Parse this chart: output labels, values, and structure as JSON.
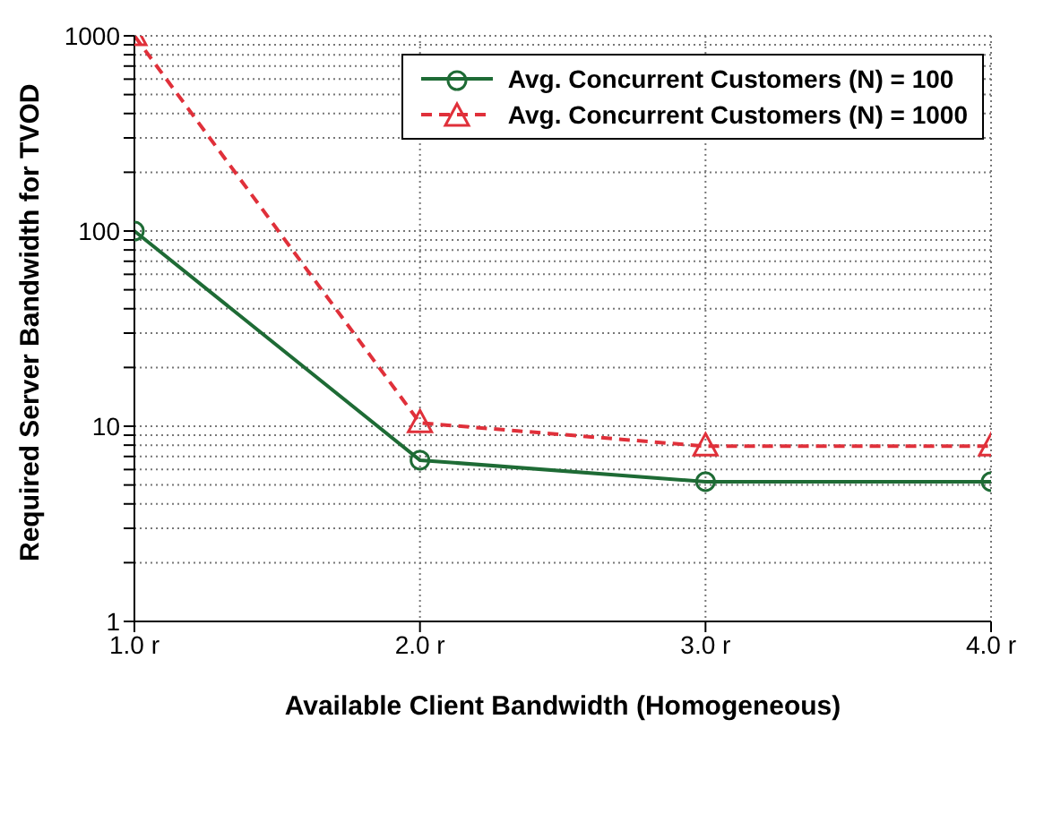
{
  "chart_data": {
    "type": "line",
    "xlabel": "Available Client Bandwidth (Homogeneous)",
    "ylabel": "Required Server Bandwidth for TVOD",
    "x": [
      1,
      2,
      3,
      4
    ],
    "series": [
      {
        "name": "Avg. Concurrent Customers (N) = 100",
        "color": "#1e6b35",
        "values": [
          100,
          6.7,
          5.2,
          5.2
        ],
        "marker": "circle",
        "line_style": "solid"
      },
      {
        "name": "Avg. Concurrent Customers (N) = 1000",
        "color": "#e0303a",
        "values": [
          1000,
          10.4,
          7.9,
          7.9
        ],
        "marker": "triangle",
        "line_style": "dashed"
      }
    ],
    "log": "y",
    "xlim": [
      1,
      4
    ],
    "ylim": [
      1,
      1000
    ],
    "xticks": [
      {
        "value": 1,
        "label": "1.0 r"
      },
      {
        "value": 2,
        "label": "2.0 r"
      },
      {
        "value": 3,
        "label": "3.0 r"
      },
      {
        "value": 4,
        "label": "4.0 r"
      }
    ],
    "yticks": [
      1,
      {
        "value": 2,
        "label": null
      },
      {
        "value": 3,
        "label": null
      },
      {
        "value": 4,
        "label": null
      },
      {
        "value": 5,
        "label": null
      },
      {
        "value": 6,
        "label": null
      },
      {
        "value": 7,
        "label": null
      },
      {
        "value": 8,
        "label": null
      },
      {
        "value": 9,
        "label": null
      },
      10,
      {
        "value": 20,
        "label": null
      },
      {
        "value": 30,
        "label": null
      },
      {
        "value": 40,
        "label": null
      },
      {
        "value": 50,
        "label": null
      },
      {
        "value": 60,
        "label": null
      },
      {
        "value": 70,
        "label": null
      },
      {
        "value": 80,
        "label": null
      },
      {
        "value": 90,
        "label": null
      },
      100,
      {
        "value": 200,
        "label": null
      },
      {
        "value": 300,
        "label": null
      },
      {
        "value": 400,
        "label": null
      },
      {
        "value": 500,
        "label": null
      },
      {
        "value": 600,
        "label": null
      },
      {
        "value": 700,
        "label": null
      },
      {
        "value": 800,
        "label": null
      },
      {
        "value": 900,
        "label": null
      },
      1000
    ],
    "grid": true,
    "legend": "top right"
  }
}
